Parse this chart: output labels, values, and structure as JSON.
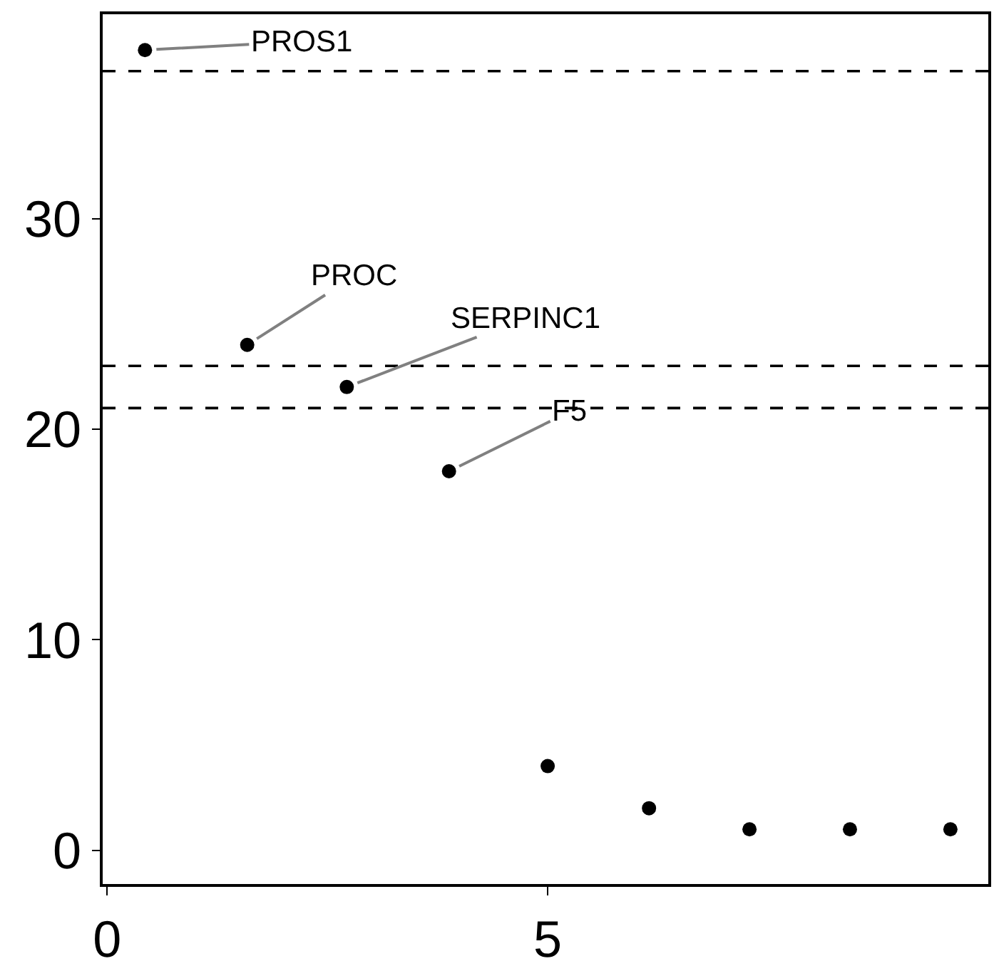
{
  "chart_data": {
    "type": "scatter",
    "marker": "circle",
    "x": [
      0.43,
      1.59,
      2.72,
      3.88,
      5.0,
      6.15,
      7.29,
      8.43,
      9.57
    ],
    "series": [
      {
        "color": "#000000",
        "values": [
          38,
          24,
          22,
          18,
          4,
          2,
          1,
          1,
          1
        ]
      }
    ],
    "xlim": [
      -0.05,
      10.0
    ],
    "xticks": [
      0,
      5
    ],
    "ylim": [
      -1.6,
      39.7
    ],
    "yticks": [
      0,
      10,
      20,
      30
    ],
    "ref_lines": [
      {
        "axis": "y",
        "value": 37,
        "line_style": "dashed",
        "color": "#000000"
      },
      {
        "axis": "y",
        "value": 23,
        "line_style": "dashed",
        "color": "#000000"
      },
      {
        "axis": "y",
        "value": 21,
        "line_style": "dashed",
        "color": "#000000"
      }
    ],
    "annotations": [
      {
        "text": "PROS1",
        "x": 0.43,
        "y": 38
      },
      {
        "text": "PROC",
        "x": 1.59,
        "y": 24
      },
      {
        "text": "SERPINC1",
        "x": 2.72,
        "y": 22
      },
      {
        "text": "F5",
        "x": 3.88,
        "y": 18
      }
    ]
  }
}
